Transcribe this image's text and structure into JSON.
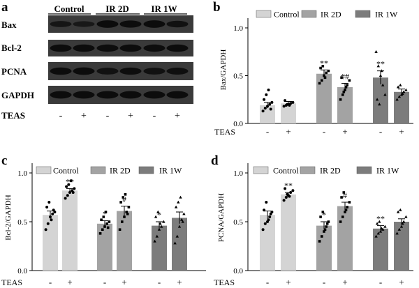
{
  "colors": {
    "control": "#d4d4d4",
    "ir2d": "#a3a3a3",
    "ir1w": "#7c7c7c",
    "blot_bg": "#3a3a3a",
    "band": "#0a0a0a"
  },
  "panel_a": {
    "letter": "a",
    "group_labels": [
      "Control",
      "IR 2D",
      "IR 1W"
    ],
    "rows": [
      "Bax",
      "Bcl-2",
      "PCNA",
      "GAPDH"
    ],
    "row_band_intensity": [
      [
        0.55,
        0.45,
        0.95,
        0.85,
        0.95,
        0.7
      ],
      [
        0.9,
        0.9,
        0.88,
        0.9,
        0.88,
        0.9
      ],
      [
        0.92,
        0.95,
        0.75,
        0.85,
        0.75,
        0.8
      ],
      [
        0.95,
        0.95,
        0.95,
        0.95,
        0.95,
        0.95
      ]
    ],
    "teas_label": "TEAS",
    "teas_signs": [
      "-",
      "+",
      "-",
      "+",
      "-",
      "+"
    ]
  },
  "chart_data": [
    {
      "type": "bar",
      "panel": "b",
      "ylabel": "Bax/GAPDH",
      "ylim": [
        0,
        1.0
      ],
      "yticks": [
        "0.0",
        "0.5",
        "1.0"
      ],
      "legend": [
        "Control",
        "IR 2D",
        "IR 1W"
      ],
      "categories": [
        "Control -",
        "Control +",
        "IR 2D -",
        "IR 2D +",
        "IR 1W -",
        "IR 1W +"
      ],
      "values": [
        0.19,
        0.21,
        0.52,
        0.38,
        0.48,
        0.33
      ],
      "errors": [
        0.03,
        0.02,
        0.04,
        0.04,
        0.07,
        0.03
      ],
      "annotations": [
        "",
        "",
        "**",
        "##",
        "**",
        ""
      ],
      "points": [
        [
          0.13,
          0.16,
          0.18,
          0.2,
          0.22,
          0.25,
          0.3,
          0.35,
          0.15
        ],
        [
          0.18,
          0.19,
          0.2,
          0.21,
          0.22,
          0.24,
          0.2,
          0.19
        ],
        [
          0.42,
          0.45,
          0.5,
          0.53,
          0.55,
          0.58,
          0.6,
          0.48
        ],
        [
          0.25,
          0.3,
          0.35,
          0.4,
          0.45,
          0.48,
          0.33,
          0.38
        ],
        [
          0.75,
          0.6,
          0.5,
          0.4,
          0.3,
          0.25,
          0.2,
          0.55
        ],
        [
          0.25,
          0.28,
          0.3,
          0.33,
          0.35,
          0.38,
          0.4,
          0.31
        ]
      ],
      "marker_shapes": [
        "circle",
        "circle",
        "square",
        "square",
        "triangle",
        "triangle"
      ],
      "teas_label": "TEAS",
      "teas_signs": [
        "-",
        "+",
        "-",
        "+",
        "-",
        "+"
      ]
    },
    {
      "type": "bar",
      "panel": "c",
      "ylabel": "Bcl-2/GAPDH",
      "ylim": [
        0,
        1.0
      ],
      "yticks": [
        "0.0",
        "0.5",
        "1.0"
      ],
      "legend": [
        "Control",
        "IR 2D",
        "IR 1W"
      ],
      "categories": [
        "Control -",
        "Control +",
        "IR 2D -",
        "IR 2D +",
        "IR 1W -",
        "IR 1W +"
      ],
      "values": [
        0.57,
        0.82,
        0.48,
        0.61,
        0.46,
        0.54
      ],
      "errors": [
        0.04,
        0.02,
        0.03,
        0.05,
        0.04,
        0.06
      ],
      "annotations": [
        "",
        "**",
        "*",
        "#",
        "*",
        ""
      ],
      "points": [
        [
          0.42,
          0.48,
          0.55,
          0.58,
          0.6,
          0.65,
          0.7,
          0.52,
          0.62
        ],
        [
          0.74,
          0.77,
          0.8,
          0.82,
          0.84,
          0.86,
          0.88,
          0.92,
          0.8
        ],
        [
          0.38,
          0.42,
          0.45,
          0.48,
          0.5,
          0.52,
          0.55,
          0.6,
          0.44
        ],
        [
          0.42,
          0.5,
          0.55,
          0.6,
          0.65,
          0.7,
          0.75,
          0.78,
          0.58
        ],
        [
          0.3,
          0.35,
          0.42,
          0.45,
          0.5,
          0.55,
          0.6,
          0.48
        ],
        [
          0.28,
          0.35,
          0.45,
          0.52,
          0.58,
          0.65,
          0.7,
          0.75,
          0.5
        ]
      ],
      "marker_shapes": [
        "circle",
        "circle",
        "square",
        "square",
        "triangle",
        "triangle"
      ],
      "teas_label": "TEAS",
      "teas_signs": [
        "-",
        "+",
        "-",
        "+",
        "-",
        "+"
      ]
    },
    {
      "type": "bar",
      "panel": "d",
      "ylabel": "PCNA/GAPDH",
      "ylim": [
        0,
        1.0
      ],
      "yticks": [
        "0.0",
        "0.5",
        "1.0"
      ],
      "legend": [
        "Control",
        "IR 2D",
        "IR 1W"
      ],
      "categories": [
        "Control -",
        "Control +",
        "IR 2D -",
        "IR 2D +",
        "IR 1W -",
        "IR 1W +"
      ],
      "values": [
        0.57,
        0.78,
        0.46,
        0.66,
        0.43,
        0.5
      ],
      "errors": [
        0.04,
        0.02,
        0.04,
        0.04,
        0.03,
        0.03
      ],
      "annotations": [
        "",
        "**",
        "*",
        "#",
        "**",
        ""
      ],
      "points": [
        [
          0.42,
          0.48,
          0.5,
          0.55,
          0.6,
          0.62,
          0.7,
          0.52,
          0.58
        ],
        [
          0.72,
          0.75,
          0.77,
          0.8,
          0.82,
          0.84,
          0.78,
          0.76
        ],
        [
          0.3,
          0.35,
          0.4,
          0.45,
          0.5,
          0.55,
          0.6,
          0.42,
          0.48
        ],
        [
          0.5,
          0.55,
          0.6,
          0.65,
          0.7,
          0.75,
          0.8,
          0.62
        ],
        [
          0.35,
          0.38,
          0.4,
          0.42,
          0.45,
          0.48,
          0.5,
          0.43
        ],
        [
          0.38,
          0.42,
          0.45,
          0.5,
          0.55,
          0.6,
          0.62,
          0.48
        ]
      ],
      "marker_shapes": [
        "circle",
        "circle",
        "square",
        "square",
        "triangle",
        "triangle"
      ],
      "teas_label": "TEAS",
      "teas_signs": [
        "-",
        "+",
        "-",
        "+",
        "-",
        "+"
      ]
    }
  ]
}
